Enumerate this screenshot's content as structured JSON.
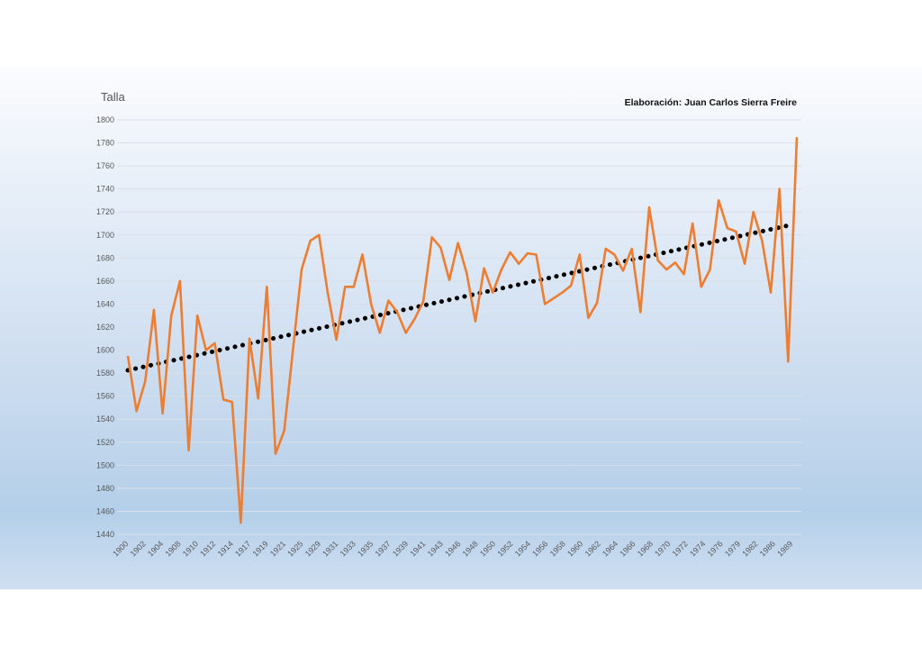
{
  "chart_data": {
    "type": "line",
    "ylabel": "Talla",
    "credit": "Elaboración: Juan Carlos Sierra Freire",
    "ylim": [
      1440,
      1800
    ],
    "yticks": [
      1440,
      1460,
      1480,
      1500,
      1520,
      1540,
      1560,
      1580,
      1600,
      1620,
      1640,
      1660,
      1680,
      1700,
      1720,
      1740,
      1760,
      1780,
      1800
    ],
    "grid": true,
    "x_tick_labels": [
      "1900",
      "1902",
      "1904",
      "1908",
      "1910",
      "1912",
      "1914",
      "1917",
      "1919",
      "1921",
      "1925",
      "1929",
      "1931",
      "1933",
      "1935",
      "1937",
      "1939",
      "1941",
      "1943",
      "1946",
      "1948",
      "1950",
      "1952",
      "1954",
      "1956",
      "1958",
      "1960",
      "1962",
      "1964",
      "1966",
      "1968",
      "1970",
      "1972",
      "1974",
      "1976",
      "1979",
      "1982",
      "1986",
      "1989"
    ],
    "series": [
      {
        "color": "#ed7d31",
        "values": [
          1595,
          1547,
          1573,
          1635,
          1545,
          1630,
          1660,
          1513,
          1630,
          1600,
          1606,
          1557,
          1555,
          1450,
          1610,
          1558,
          1655,
          1510,
          1530,
          1600,
          1670,
          1695,
          1700,
          1650,
          1609,
          1655,
          1655,
          1683,
          1640,
          1615,
          1643,
          1633,
          1615,
          1627,
          1642,
          1698,
          1689,
          1661,
          1693,
          1667,
          1625,
          1671,
          1650,
          1670,
          1685,
          1675,
          1684,
          1683,
          1640,
          1645,
          1650,
          1656,
          1683,
          1628,
          1641,
          1688,
          1683,
          1669,
          1688,
          1633,
          1724,
          1678,
          1670,
          1676,
          1666,
          1710,
          1655,
          1670,
          1730,
          1706,
          1703,
          1675,
          1720,
          1695,
          1650,
          1740,
          1590,
          1785
        ]
      },
      {
        "name": "trend",
        "style": "dotted",
        "color": "#000000",
        "values": [
          1582.5,
          1708.5
        ]
      }
    ]
  }
}
